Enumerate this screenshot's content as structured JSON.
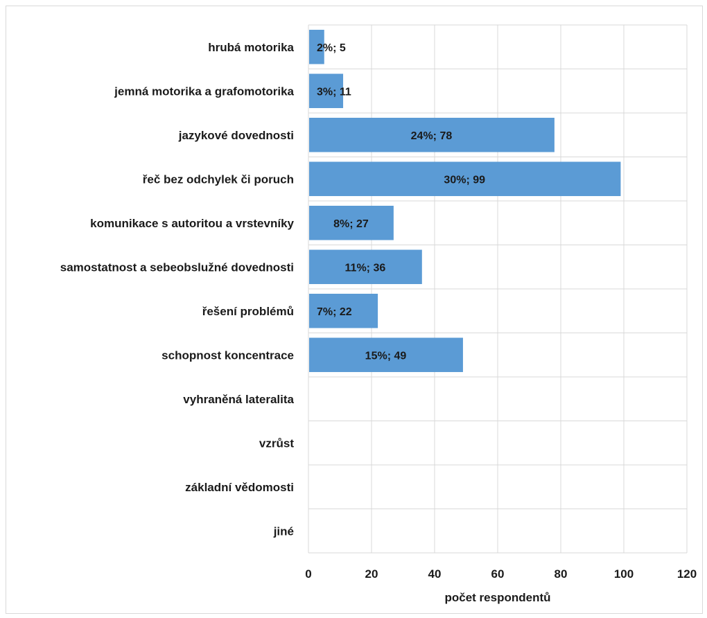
{
  "chart_data": {
    "type": "bar",
    "orientation": "horizontal",
    "categories": [
      "hrubá motorika",
      "jemná motorika a grafomotorika",
      "jazykové dovednosti",
      "řeč bez odchylek či poruch",
      "komunikace s autoritou a vrstevníky",
      "samostatnost a sebeobslužné dovednosti",
      "řešení problémů",
      "schopnost koncentrace",
      "vyhraněná lateralita",
      "vzrůst",
      "základní vědomosti",
      "jiné"
    ],
    "values": [
      5,
      11,
      78,
      99,
      27,
      36,
      22,
      49,
      0,
      0,
      0,
      0
    ],
    "data_labels": [
      "2%; 5",
      "3%; 11",
      "24%; 78",
      "30%; 99",
      "8%; 27",
      "11%; 36",
      "7%; 22",
      "15%; 49",
      "",
      "",
      "",
      ""
    ],
    "xlabel": "počet respondentů",
    "ylabel": "",
    "xlim": [
      0,
      120
    ],
    "xticks": [
      0,
      20,
      40,
      60,
      80,
      100,
      120
    ],
    "grid": true,
    "bar_color": "#5b9bd5"
  }
}
